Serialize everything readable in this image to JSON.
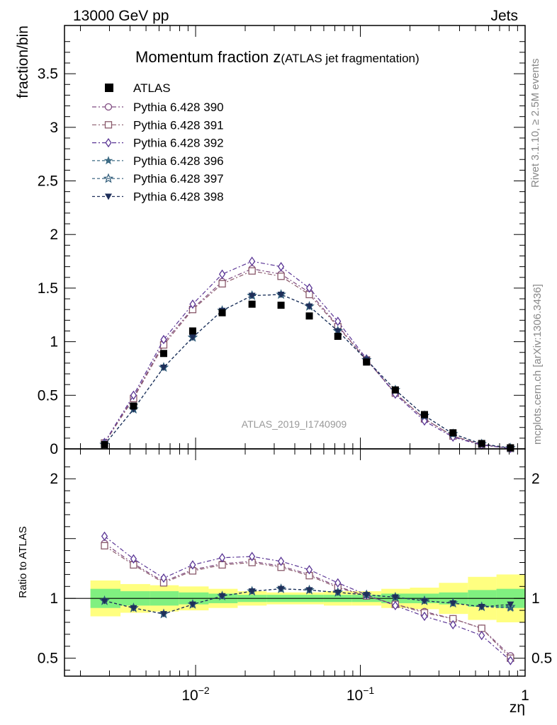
{
  "header": {
    "left": "13000 GeV pp",
    "right": "Jets"
  },
  "title": {
    "main": "Momentum fraction z",
    "sub": "(ATLAS jet fragmentation)"
  },
  "side_labels": {
    "rivet": "Rivet 3.1.10, ≥ 2.5M events",
    "mcplots": "mcplots.cern.ch [arXiv:1306.3436]"
  },
  "analysis_tag": "ATLAS_2019_I1740909",
  "chart_data": {
    "type": "scatter",
    "xscale": "log",
    "xlabel": "zη",
    "x_ticks": [
      {
        "value": 0.01,
        "base": "10",
        "exp": "−2"
      },
      {
        "value": 0.1,
        "base": "10",
        "exp": "−1"
      },
      {
        "value": 1,
        "base": "1",
        "exp": ""
      }
    ],
    "x": [
      0.0028,
      0.0042,
      0.0064,
      0.0096,
      0.0145,
      0.022,
      0.033,
      0.049,
      0.073,
      0.109,
      0.163,
      0.245,
      0.365,
      0.545,
      0.815
    ],
    "main": {
      "ylabel": "fraction/bin",
      "ylim": [
        0,
        3.95
      ],
      "yticks": [
        {
          "value": 0,
          "label": "0"
        },
        {
          "value": 0.5,
          "label": "0.5"
        },
        {
          "value": 1,
          "label": "1"
        },
        {
          "value": 1.5,
          "label": "1.5"
        },
        {
          "value": 2,
          "label": "2"
        },
        {
          "value": 2.5,
          "label": "2.5"
        },
        {
          "value": 3,
          "label": "3"
        },
        {
          "value": 3.5,
          "label": "3.5"
        }
      ],
      "data": {
        "name": "ATLAS",
        "values": [
          0.04,
          0.4,
          0.89,
          1.1,
          1.27,
          1.35,
          1.34,
          1.24,
          1.05,
          0.81,
          0.55,
          0.32,
          0.15,
          0.05,
          0.01
        ]
      },
      "series": [
        {
          "name": "Pythia 6.428 390",
          "color": "#7f4a80",
          "dash": "6,3,2,3",
          "marker": "circle-open",
          "values": [
            0.055,
            0.48,
            0.99,
            1.31,
            1.56,
            1.68,
            1.63,
            1.46,
            1.15,
            0.83,
            0.52,
            0.28,
            0.12,
            0.04,
            0.005
          ]
        },
        {
          "name": "Pythia 6.428 391",
          "color": "#8a5a6b",
          "dash": "6,3,2,3",
          "marker": "square-open",
          "values": [
            0.055,
            0.47,
            0.97,
            1.3,
            1.54,
            1.66,
            1.61,
            1.44,
            1.14,
            0.83,
            0.52,
            0.28,
            0.12,
            0.04,
            0.005
          ]
        },
        {
          "name": "Pythia 6.428 392",
          "color": "#5a3595",
          "dash": "6,3,2,3",
          "marker": "diamond-open",
          "values": [
            0.06,
            0.5,
            1.02,
            1.35,
            1.63,
            1.75,
            1.7,
            1.5,
            1.19,
            0.84,
            0.51,
            0.26,
            0.11,
            0.035,
            0.005
          ]
        },
        {
          "name": "Pythia 6.428 396",
          "color": "#3d6b84",
          "dash": "4,3",
          "marker": "star-filled",
          "values": [
            0.04,
            0.37,
            0.76,
            1.04,
            1.29,
            1.43,
            1.44,
            1.33,
            1.1,
            0.83,
            0.55,
            0.31,
            0.14,
            0.046,
            0.008
          ]
        },
        {
          "name": "Pythia 6.428 397",
          "color": "#2e5a78",
          "dash": "4,3",
          "marker": "star-open",
          "values": [
            0.04,
            0.37,
            0.76,
            1.04,
            1.29,
            1.43,
            1.44,
            1.33,
            1.1,
            0.83,
            0.55,
            0.31,
            0.14,
            0.046,
            0.008
          ]
        },
        {
          "name": "Pythia 6.428 398",
          "color": "#1f2f5a",
          "dash": "4,3",
          "marker": "triangle-down-filled",
          "values": [
            0.04,
            0.37,
            0.76,
            1.04,
            1.29,
            1.43,
            1.44,
            1.33,
            1.1,
            0.83,
            0.55,
            0.31,
            0.14,
            0.046,
            0.008
          ]
        }
      ]
    },
    "ratio": {
      "ylabel": "Ratio to ATLAS",
      "ylim": [
        0.35,
        2.25
      ],
      "yticks": [
        {
          "value": 0.5,
          "label": "0.5"
        },
        {
          "value": 1,
          "label": "1"
        },
        {
          "value": 2,
          "label": "2"
        }
      ],
      "bins": [
        {
          "lo": 0.0023,
          "hi": 0.0035,
          "stat": 0.08,
          "tot": 0.15
        },
        {
          "lo": 0.0035,
          "hi": 0.0053,
          "stat": 0.06,
          "tot": 0.12
        },
        {
          "lo": 0.0053,
          "hi": 0.0079,
          "stat": 0.06,
          "tot": 0.11
        },
        {
          "lo": 0.0079,
          "hi": 0.012,
          "stat": 0.05,
          "tot": 0.1
        },
        {
          "lo": 0.012,
          "hi": 0.018,
          "stat": 0.04,
          "tot": 0.08
        },
        {
          "lo": 0.018,
          "hi": 0.027,
          "stat": 0.03,
          "tot": 0.06
        },
        {
          "lo": 0.027,
          "hi": 0.04,
          "stat": 0.03,
          "tot": 0.05
        },
        {
          "lo": 0.04,
          "hi": 0.06,
          "stat": 0.03,
          "tot": 0.05
        },
        {
          "lo": 0.06,
          "hi": 0.089,
          "stat": 0.03,
          "tot": 0.06
        },
        {
          "lo": 0.089,
          "hi": 0.134,
          "stat": 0.03,
          "tot": 0.06
        },
        {
          "lo": 0.134,
          "hi": 0.2,
          "stat": 0.04,
          "tot": 0.08
        },
        {
          "lo": 0.2,
          "hi": 0.3,
          "stat": 0.04,
          "tot": 0.09
        },
        {
          "lo": 0.3,
          "hi": 0.45,
          "stat": 0.05,
          "tot": 0.13
        },
        {
          "lo": 0.45,
          "hi": 0.67,
          "stat": 0.07,
          "tot": 0.18
        },
        {
          "lo": 0.67,
          "hi": 1.0,
          "stat": 0.08,
          "tot": 0.2
        }
      ],
      "series": [
        {
          "name": "Pythia 6.428 390",
          "values": [
            1.46,
            1.29,
            1.14,
            1.24,
            1.29,
            1.31,
            1.27,
            1.2,
            1.1,
            1.02,
            0.95,
            0.89,
            0.83,
            0.75,
            0.52
          ]
        },
        {
          "name": "Pythia 6.428 391",
          "values": [
            1.44,
            1.28,
            1.13,
            1.23,
            1.28,
            1.3,
            1.26,
            1.19,
            1.09,
            1.02,
            0.95,
            0.88,
            0.83,
            0.75,
            0.5
          ]
        },
        {
          "name": "Pythia 6.428 392",
          "values": [
            1.52,
            1.33,
            1.17,
            1.28,
            1.34,
            1.35,
            1.31,
            1.24,
            1.13,
            1.03,
            0.94,
            0.85,
            0.78,
            0.69,
            0.48
          ]
        },
        {
          "name": "Pythia 6.428 396",
          "values": [
            0.98,
            0.92,
            0.87,
            0.95,
            1.02,
            1.06,
            1.08,
            1.07,
            1.05,
            1.03,
            1.01,
            0.98,
            0.96,
            0.93,
            0.92
          ]
        },
        {
          "name": "Pythia 6.428 397",
          "values": [
            0.98,
            0.92,
            0.87,
            0.95,
            1.02,
            1.06,
            1.08,
            1.07,
            1.05,
            1.03,
            1.01,
            0.98,
            0.96,
            0.93,
            0.93
          ]
        },
        {
          "name": "Pythia 6.428 398",
          "values": [
            0.98,
            0.92,
            0.87,
            0.95,
            1.02,
            1.06,
            1.08,
            1.07,
            1.05,
            1.03,
            1.01,
            0.98,
            0.96,
            0.93,
            0.95
          ]
        }
      ]
    },
    "legend_placement": "top-left",
    "grid": false
  }
}
